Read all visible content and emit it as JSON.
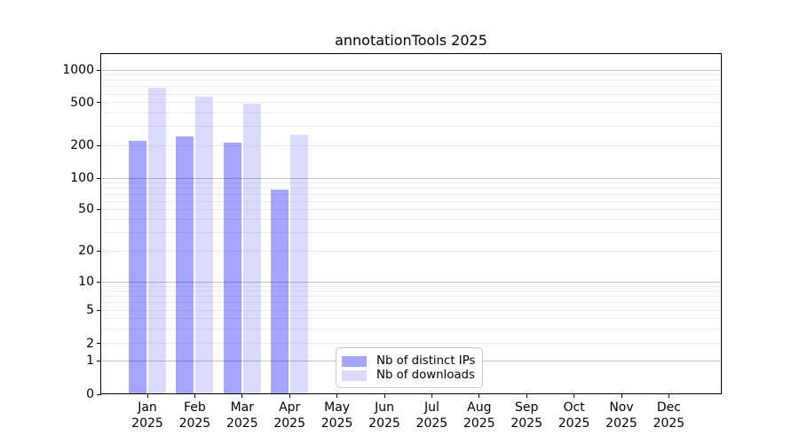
{
  "title": "annotationTools 2025",
  "legend": {
    "position": "lower center",
    "items": [
      {
        "label": "Nb of distinct IPs",
        "color": "rgba(0,0,255,0.35)"
      },
      {
        "label": "Nb of downloads",
        "color": "rgba(0,0,255,0.14)"
      }
    ]
  },
  "chart_data": {
    "type": "bar",
    "title": "annotationTools 2025",
    "months": [
      "Jan",
      "Feb",
      "Mar",
      "Apr",
      "May",
      "Jun",
      "Jul",
      "Aug",
      "Sep",
      "Oct",
      "Nov",
      "Dec"
    ],
    "year_label": "2025",
    "categories": [
      "Jan 2025",
      "Feb 2025",
      "Mar 2025",
      "Apr 2025",
      "May 2025",
      "Jun 2025",
      "Jul 2025",
      "Aug 2025",
      "Sep 2025",
      "Oct 2025",
      "Nov 2025",
      "Dec 2025"
    ],
    "series": [
      {
        "name": "Nb of distinct IPs",
        "color": "rgba(0,0,255,0.35)",
        "values": [
          220,
          240,
          210,
          78,
          0,
          0,
          0,
          0,
          0,
          0,
          0,
          0
        ]
      },
      {
        "name": "Nb of downloads",
        "color": "rgba(0,0,255,0.14)",
        "values": [
          690,
          570,
          490,
          250,
          0,
          0,
          0,
          0,
          0,
          0,
          0,
          0
        ]
      }
    ],
    "xlabel": "",
    "ylabel": "",
    "y_axis": {
      "scale": "log-like",
      "tick_values": [
        0,
        1,
        2,
        5,
        10,
        20,
        50,
        100,
        200,
        500,
        1000
      ],
      "tick_labels": [
        "0",
        "1",
        "2",
        "5",
        "10",
        "20",
        "50",
        "100",
        "200",
        "500",
        "1000"
      ],
      "ylim": [
        0,
        1400
      ]
    },
    "grid": {
      "shown": true,
      "major_color": "#c2c2c2",
      "minor_color": "#ececec"
    },
    "legend_entries": [
      "Nb of distinct IPs",
      "Nb of downloads"
    ]
  }
}
